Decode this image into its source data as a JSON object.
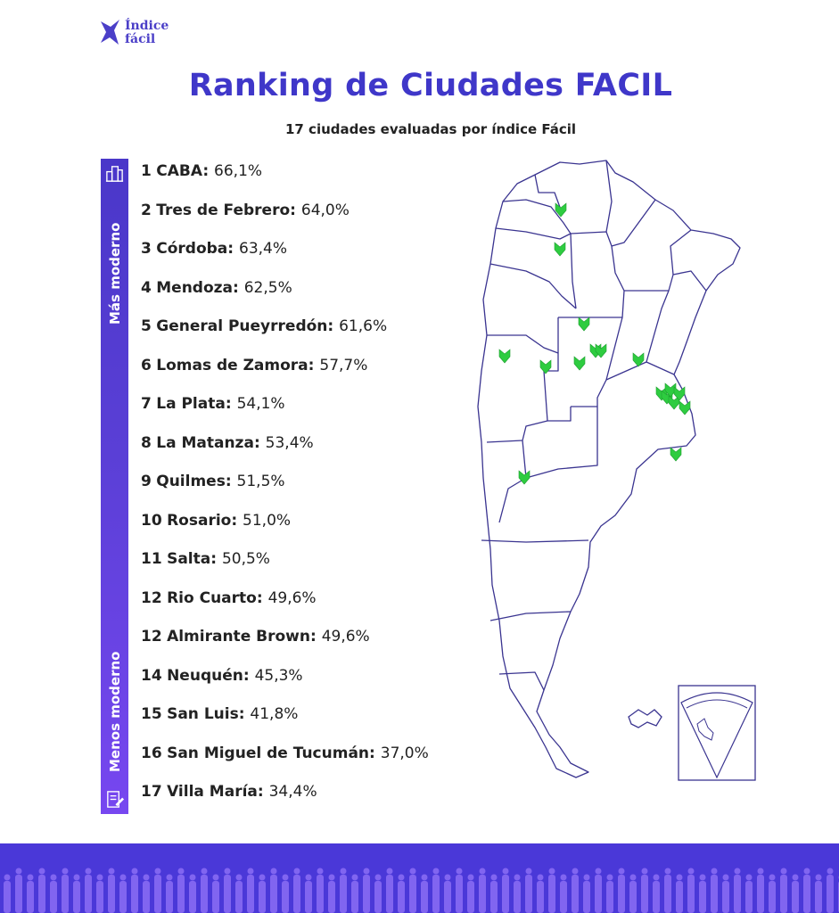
{
  "logo": {
    "text": "Índice\nfácil"
  },
  "title": "Ranking de Ciudades FACIL",
  "subtitle": "17 ciudades evaluadas por índice Fácil",
  "scale": {
    "top_label": "Más moderno",
    "bottom_label": "Menos moderno",
    "top_icon": "city-buildings-icon",
    "bottom_icon": "document-edit-icon"
  },
  "colors": {
    "accent": "#3f37c9",
    "bar_top": "#4a37c9",
    "bar_bottom": "#7747f0",
    "map_stroke": "#3a3490",
    "marker": "#2ecc40",
    "footer": "#4a38d8"
  },
  "chart_data": {
    "type": "table",
    "title": "Ranking de Ciudades FACIL",
    "subtitle": "17 ciudades evaluadas por índice Fácil",
    "unit": "%",
    "rows": [
      {
        "rank": "1",
        "city": "CABA",
        "value_text": "66,1%",
        "value": 66.1
      },
      {
        "rank": "2",
        "city": "Tres de Febrero",
        "value_text": "64,0%",
        "value": 64.0
      },
      {
        "rank": "3",
        "city": "Córdoba",
        "value_text": "63,4%",
        "value": 63.4
      },
      {
        "rank": "4",
        "city": "Mendoza",
        "value_text": "62,5%",
        "value": 62.5
      },
      {
        "rank": "5",
        "city": "General Pueyrredón",
        "value_text": "61,6%",
        "value": 61.6
      },
      {
        "rank": "6",
        "city": "Lomas de Zamora",
        "value_text": "57,7%",
        "value": 57.7
      },
      {
        "rank": "7",
        "city": "La Plata",
        "value_text": "54,1%",
        "value": 54.1
      },
      {
        "rank": "8",
        "city": "La Matanza",
        "value_text": "53,4%",
        "value": 53.4
      },
      {
        "rank": "9",
        "city": "Quilmes",
        "value_text": "51,5%",
        "value": 51.5
      },
      {
        "rank": "10",
        "city": "Rosario",
        "value_text": "51,0%",
        "value": 51.0
      },
      {
        "rank": "11",
        "city": "Salta",
        "value_text": "50,5%",
        "value": 50.5
      },
      {
        "rank": "12",
        "city": "Rio Cuarto",
        "value_text": "49,6%",
        "value": 49.6
      },
      {
        "rank": "12",
        "city": "Almirante Brown",
        "value_text": "49,6%",
        "value": 49.6
      },
      {
        "rank": "14",
        "city": "Neuquén",
        "value_text": "45,3%",
        "value": 45.3
      },
      {
        "rank": "15",
        "city": "San Luis",
        "value_text": "41,8%",
        "value": 41.8
      },
      {
        "rank": "16",
        "city": "San Miguel de Tucumán",
        "value_text": "37,0%",
        "value": 37.0
      },
      {
        "rank": "17",
        "city": "Villa María",
        "value_text": "34,4%",
        "value": 34.4
      }
    ]
  }
}
